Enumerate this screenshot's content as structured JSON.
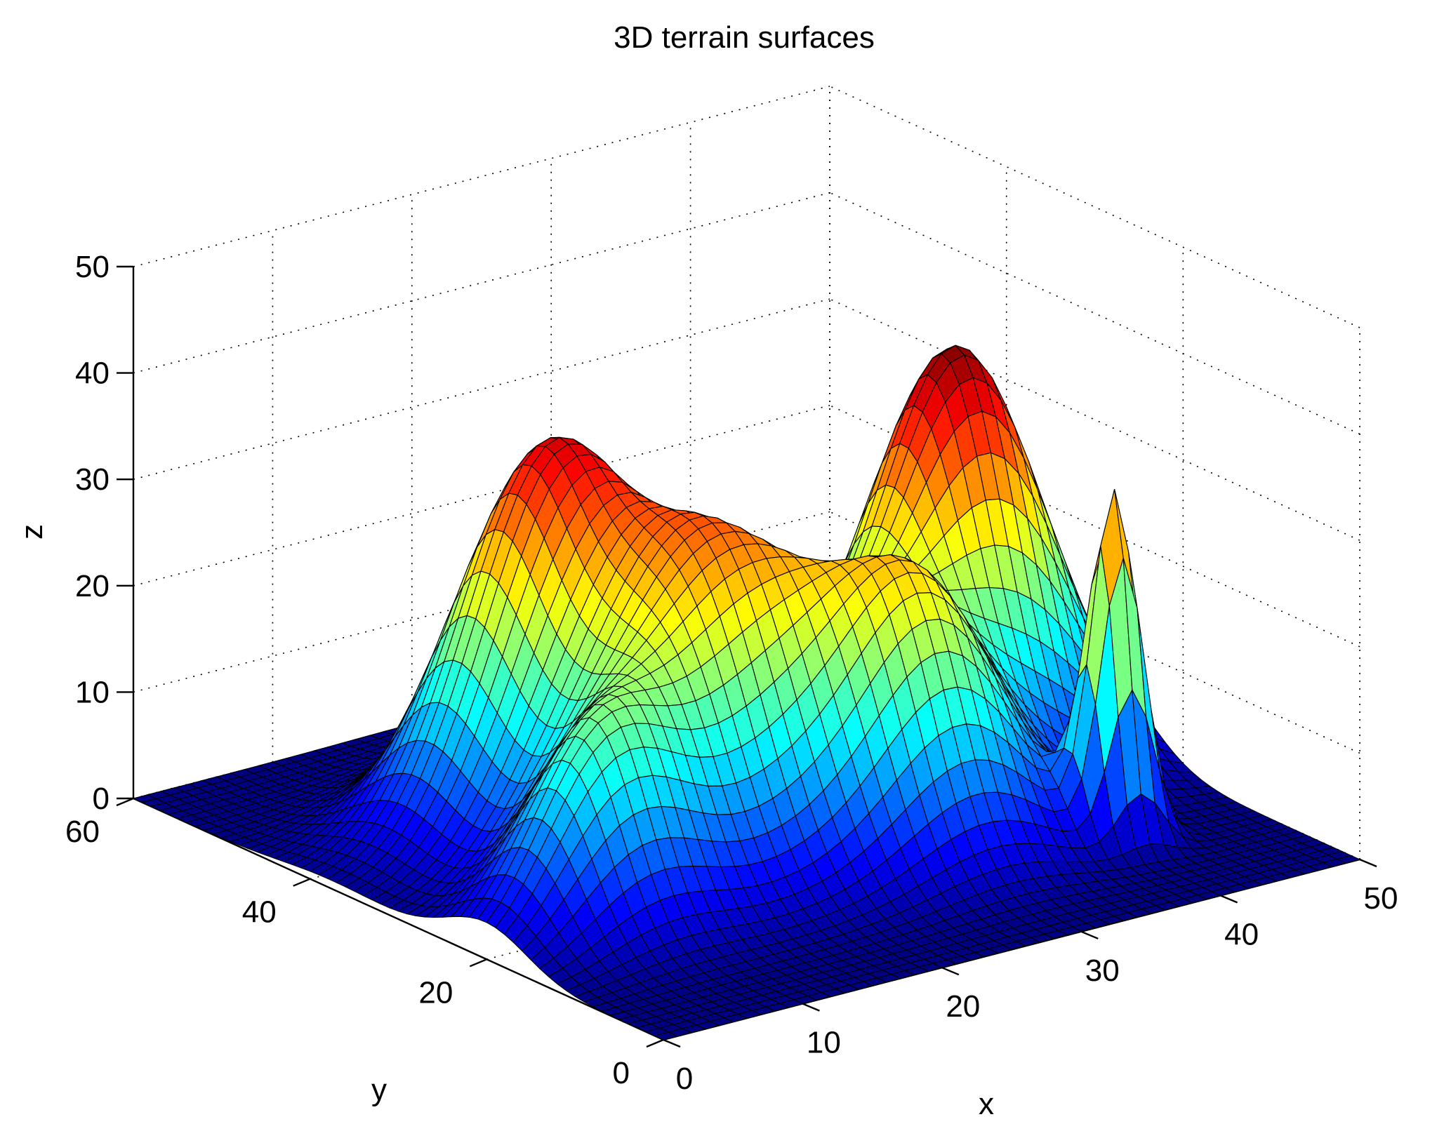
{
  "chart_data": {
    "type": "surface",
    "title": "3D terrain surfaces",
    "xlabel": "x",
    "ylabel": "y",
    "zlabel": "z",
    "xlim": [
      0,
      50
    ],
    "ylim": [
      0,
      60
    ],
    "zlim": [
      0,
      50
    ],
    "xticks": [
      "0",
      "10",
      "20",
      "30",
      "40",
      "50"
    ],
    "yticks": [
      "0",
      "20",
      "40",
      "60"
    ],
    "zticks": [
      "0",
      "10",
      "20",
      "30",
      "40",
      "50"
    ],
    "grid": true,
    "colormap": "jet",
    "edge_color": "#000000",
    "mesh": {
      "nx": 51,
      "ny": 61,
      "x_step": 1,
      "y_step": 1
    },
    "peaks": [
      {
        "x": 15,
        "y": 38,
        "height": 30,
        "spread": 5.5
      },
      {
        "x": 20,
        "y": 26,
        "height": 29,
        "spread": 6.5
      },
      {
        "x": 30,
        "y": 18,
        "height": 22,
        "spread": 5
      },
      {
        "x": 40,
        "y": 30,
        "height": 40,
        "spread": 5.5
      },
      {
        "x": 40,
        "y": 12,
        "height": 32,
        "spread": 1.6
      },
      {
        "x": 8,
        "y": 20,
        "height": 16,
        "spread": 4.5
      },
      {
        "x": 22,
        "y": 44,
        "height": 8,
        "spread": 6
      }
    ]
  }
}
